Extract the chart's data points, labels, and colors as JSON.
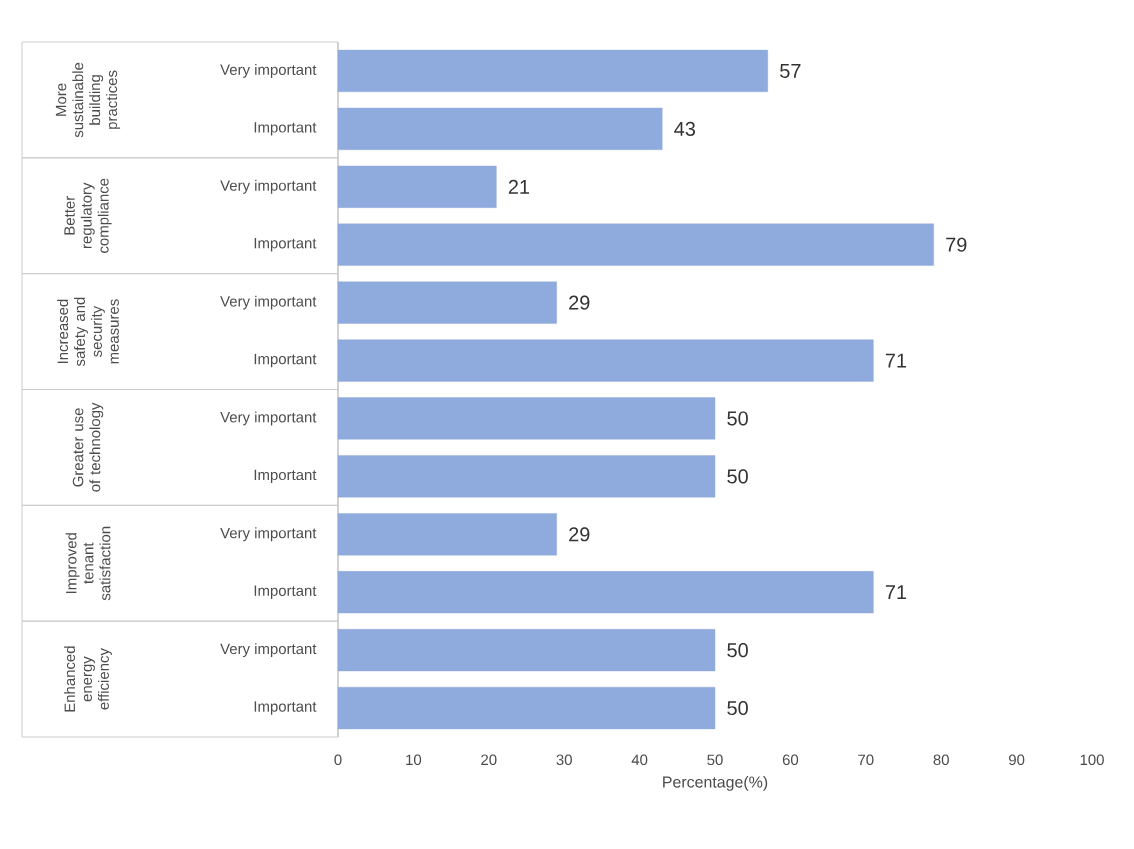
{
  "chart_data": {
    "type": "bar",
    "orientation": "horizontal",
    "xlabel": "Percentage(%)",
    "categories": [
      "Very important",
      "Important",
      "Very important",
      "Important",
      "Very important",
      "Important",
      "Very important",
      "Important",
      "Very important",
      "Important",
      "Very important",
      "Important"
    ],
    "annotations": [
      "More sustainable building practices",
      "Better regulatory compliance",
      "Increased safety and security measures",
      "Greater use of technology",
      "Improved tenant satisfaction",
      "Enhanced energy efficiency"
    ],
    "values": [
      57,
      43,
      21,
      79,
      29,
      71,
      50,
      50,
      29,
      71,
      50,
      50
    ],
    "color": "#8faadc",
    "data_labels": true,
    "xlim": [
      0,
      100
    ],
    "xticks": [
      0,
      10,
      20,
      30,
      40,
      50,
      60,
      70,
      80,
      90,
      100
    ],
    "grid": false
  }
}
